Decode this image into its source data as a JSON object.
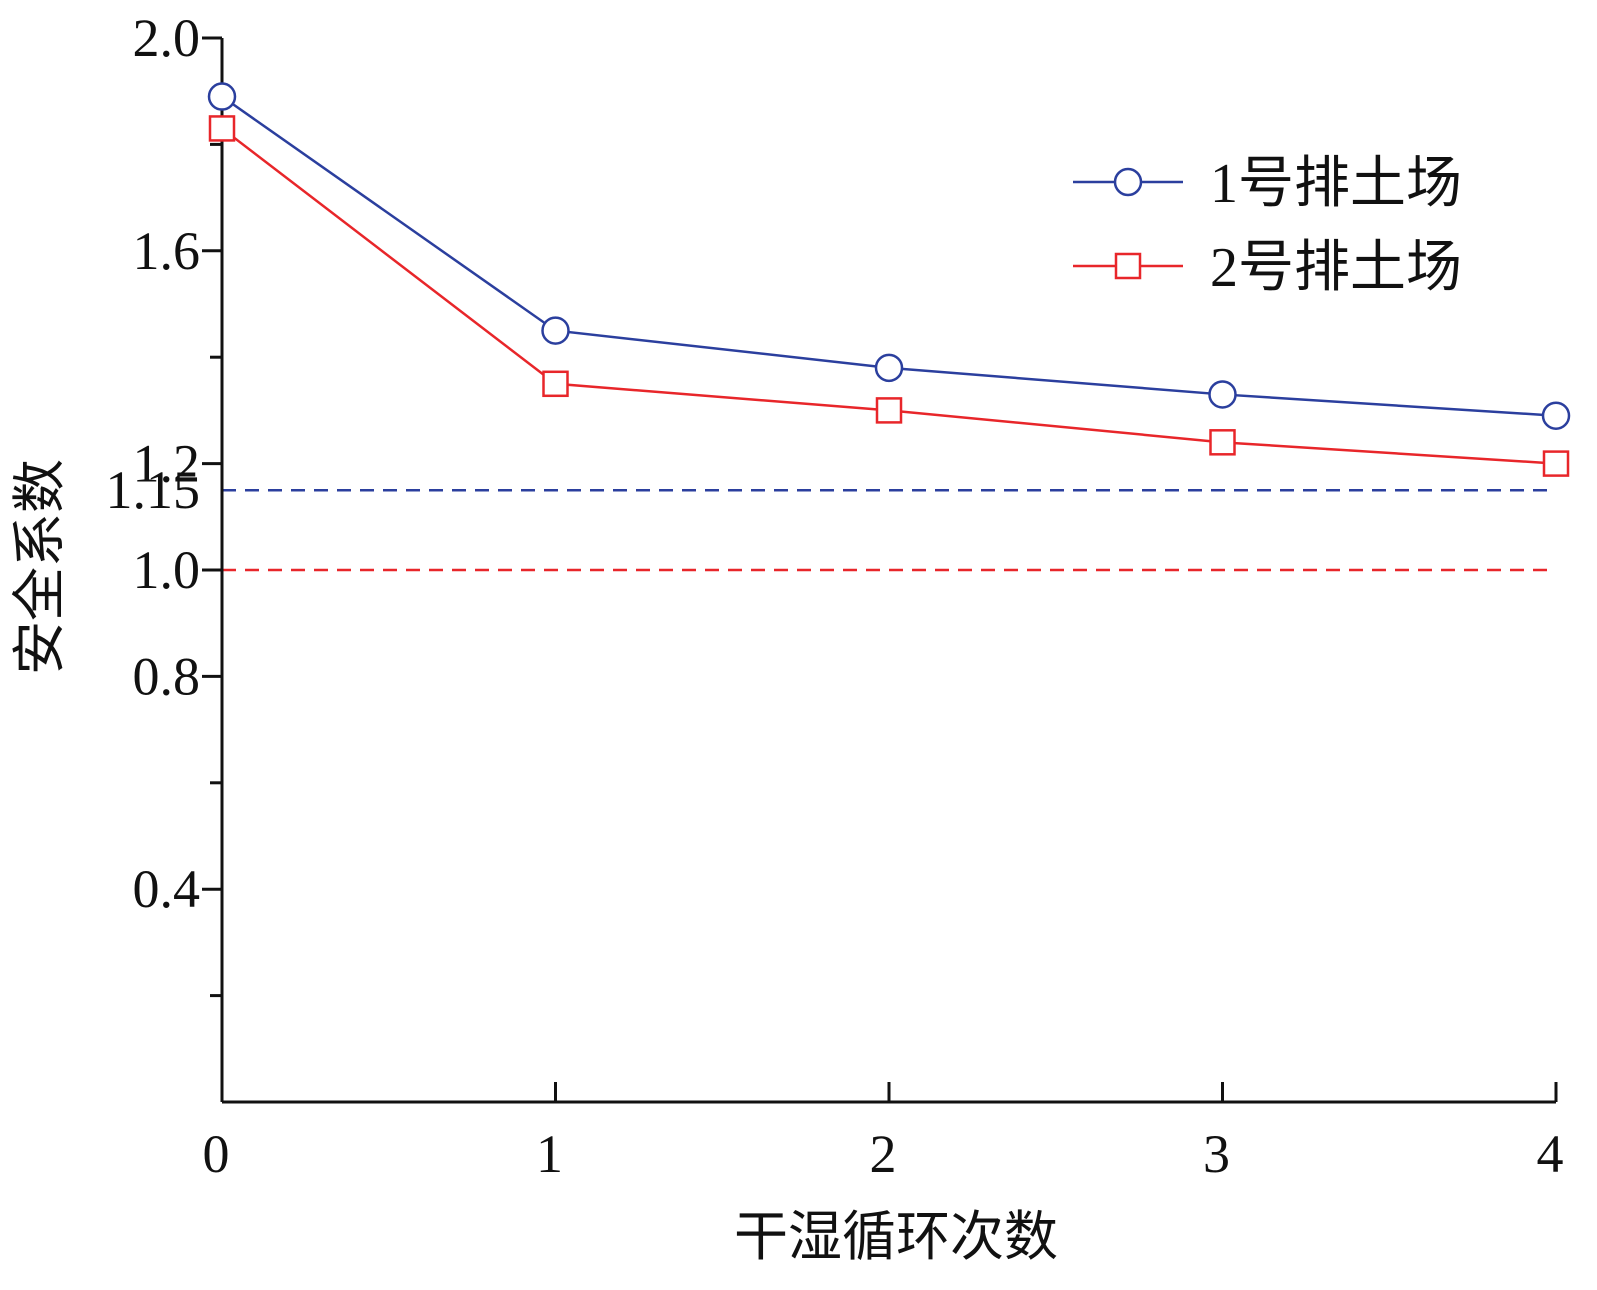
{
  "chart_data": {
    "type": "line",
    "xlabel": "干湿循环次数",
    "ylabel": "安全系数",
    "x": [
      0,
      1,
      2,
      3,
      4
    ],
    "xlim": [
      0,
      4
    ],
    "ylim": [
      0,
      2.0
    ],
    "x_ticks": [
      "0",
      "1",
      "2",
      "3",
      "4"
    ],
    "y_ticks": [
      {
        "value": 0.4,
        "label": "0.4"
      },
      {
        "value": 0.8,
        "label": "0.8"
      },
      {
        "value": 1.0,
        "label": "1.0"
      },
      {
        "value": 1.15,
        "label": "1.15"
      },
      {
        "value": 1.2,
        "label": "1.2"
      },
      {
        "value": 1.6,
        "label": "1.6"
      },
      {
        "value": 2.0,
        "label": "2.0"
      }
    ],
    "y_minor_ticks": [
      0.2,
      0.6,
      1.4,
      1.8
    ],
    "series": [
      {
        "name": "1号排土场",
        "color": "#2b3f9e",
        "marker": "circle",
        "values": [
          1.89,
          1.45,
          1.38,
          1.33,
          1.29
        ]
      },
      {
        "name": "2号排土场",
        "color": "#e8262a",
        "marker": "square",
        "values": [
          1.83,
          1.35,
          1.3,
          1.24,
          1.2
        ]
      }
    ],
    "reference_lines": [
      {
        "y": 1.15,
        "color": "#2b3f9e",
        "style": "dashed"
      },
      {
        "y": 1.0,
        "color": "#e8262a",
        "style": "dashed"
      }
    ],
    "legend_position": "top-right",
    "grid": false
  }
}
